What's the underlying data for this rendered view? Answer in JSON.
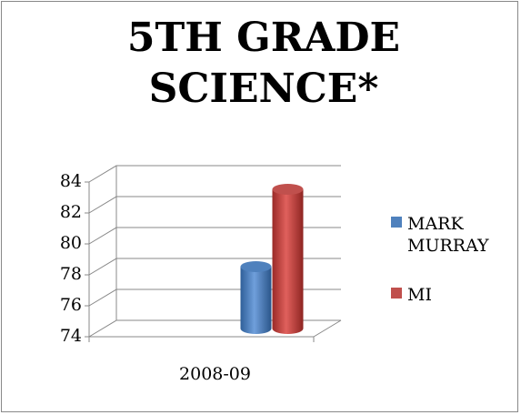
{
  "chart_data": {
    "type": "bar3d",
    "title": "5TH GRADE SCIENCE*",
    "categories": [
      "2008-09"
    ],
    "series": [
      {
        "name": "MARK MURRAY",
        "color": "#4f81bd",
        "values": [
          78
        ]
      },
      {
        "name": "MI",
        "color": "#c0504d",
        "values": [
          83
        ]
      }
    ],
    "ylim": [
      74,
      84
    ],
    "yticks": [
      74,
      76,
      78,
      80,
      82,
      84
    ],
    "grid": true,
    "legend": "right"
  }
}
